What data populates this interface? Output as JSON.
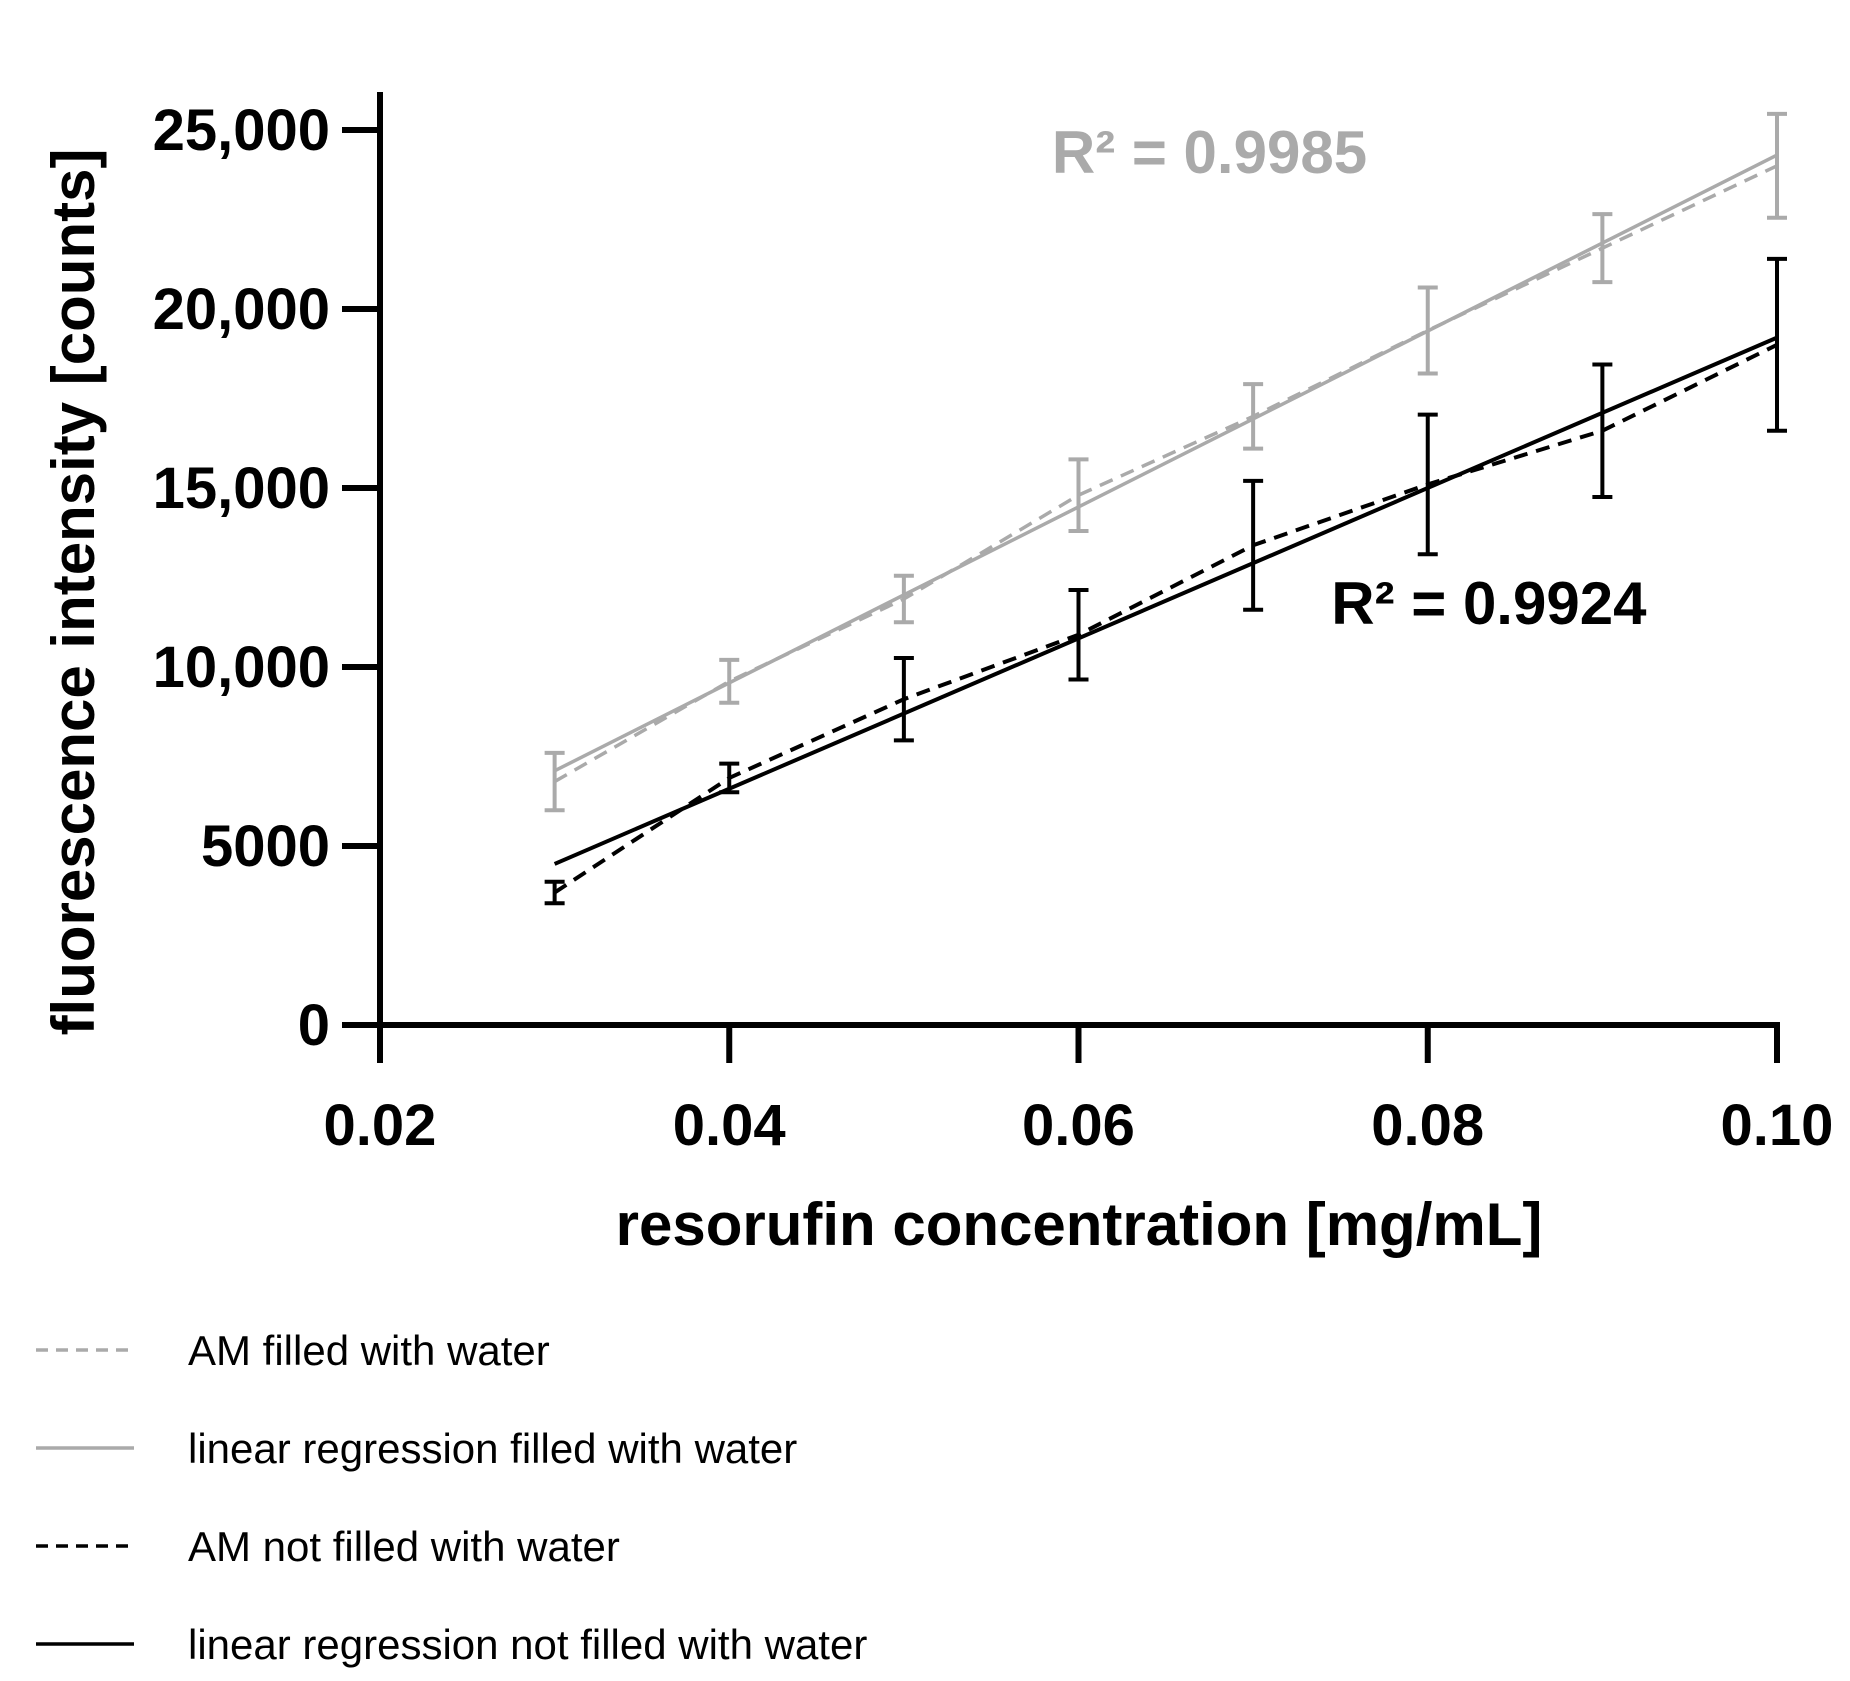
{
  "chart_data": {
    "type": "line",
    "xlabel": "resorufin concentration [mg/mL]",
    "ylabel": "fluorescence intensity [counts]",
    "xlim": [
      0.02,
      0.1
    ],
    "ylim": [
      0,
      25000
    ],
    "x_ticks": [
      0.02,
      0.04,
      0.06,
      0.08,
      0.1
    ],
    "x_tick_labels": [
      "0.02",
      "0.04",
      "0.06",
      "0.08",
      "0.10"
    ],
    "y_ticks": [
      0,
      5000,
      10000,
      15000,
      20000,
      25000
    ],
    "y_tick_labels": [
      "0",
      "5000",
      "10,000",
      "15,000",
      "20,000",
      "25,000"
    ],
    "x": [
      0.03,
      0.04,
      0.05,
      0.06,
      0.07,
      0.08,
      0.09,
      0.1
    ],
    "series": [
      {
        "name": "AM filled with water",
        "style": "dashed",
        "color": "#aaaaaa",
        "values": [
          6800,
          9600,
          11900,
          14800,
          17000,
          19400,
          21700,
          24000
        ],
        "error": [
          800,
          600,
          650,
          1000,
          900,
          1200,
          950,
          1450
        ]
      },
      {
        "name": "linear regression filled with water",
        "style": "solid",
        "color": "#aaaaaa",
        "fit_start": [
          0.03,
          7100
        ],
        "fit_end": [
          0.1,
          24300
        ]
      },
      {
        "name": "AM not filled with water",
        "style": "dashed",
        "color": "#000000",
        "values": [
          3700,
          6900,
          9100,
          10900,
          13400,
          15100,
          16600,
          19000
        ],
        "error": [
          300,
          400,
          1150,
          1250,
          1800,
          1950,
          1850,
          2400
        ]
      },
      {
        "name": "linear regression not filled with water",
        "style": "solid",
        "color": "#000000",
        "fit_start": [
          0.03,
          4500
        ],
        "fit_end": [
          0.1,
          19200
        ]
      }
    ],
    "annotations": [
      {
        "text": "R² = 0.9985",
        "color": "#aaaaaa",
        "x": 0.0675,
        "y": 23800
      },
      {
        "text": "R² = 0.9924",
        "color": "#000000",
        "x": 0.0835,
        "y": 11200
      }
    ],
    "legend": [
      {
        "label": "AM filled with water",
        "style": "dashed",
        "color": "#aaaaaa"
      },
      {
        "label": "linear regression filled with water",
        "style": "solid",
        "color": "#aaaaaa"
      },
      {
        "label": "AM not filled with water",
        "style": "dashed",
        "color": "#000000"
      },
      {
        "label": "linear regression not filled with water",
        "style": "solid",
        "color": "#000000"
      }
    ],
    "legend_position": "bottom-left",
    "grid": false
  }
}
